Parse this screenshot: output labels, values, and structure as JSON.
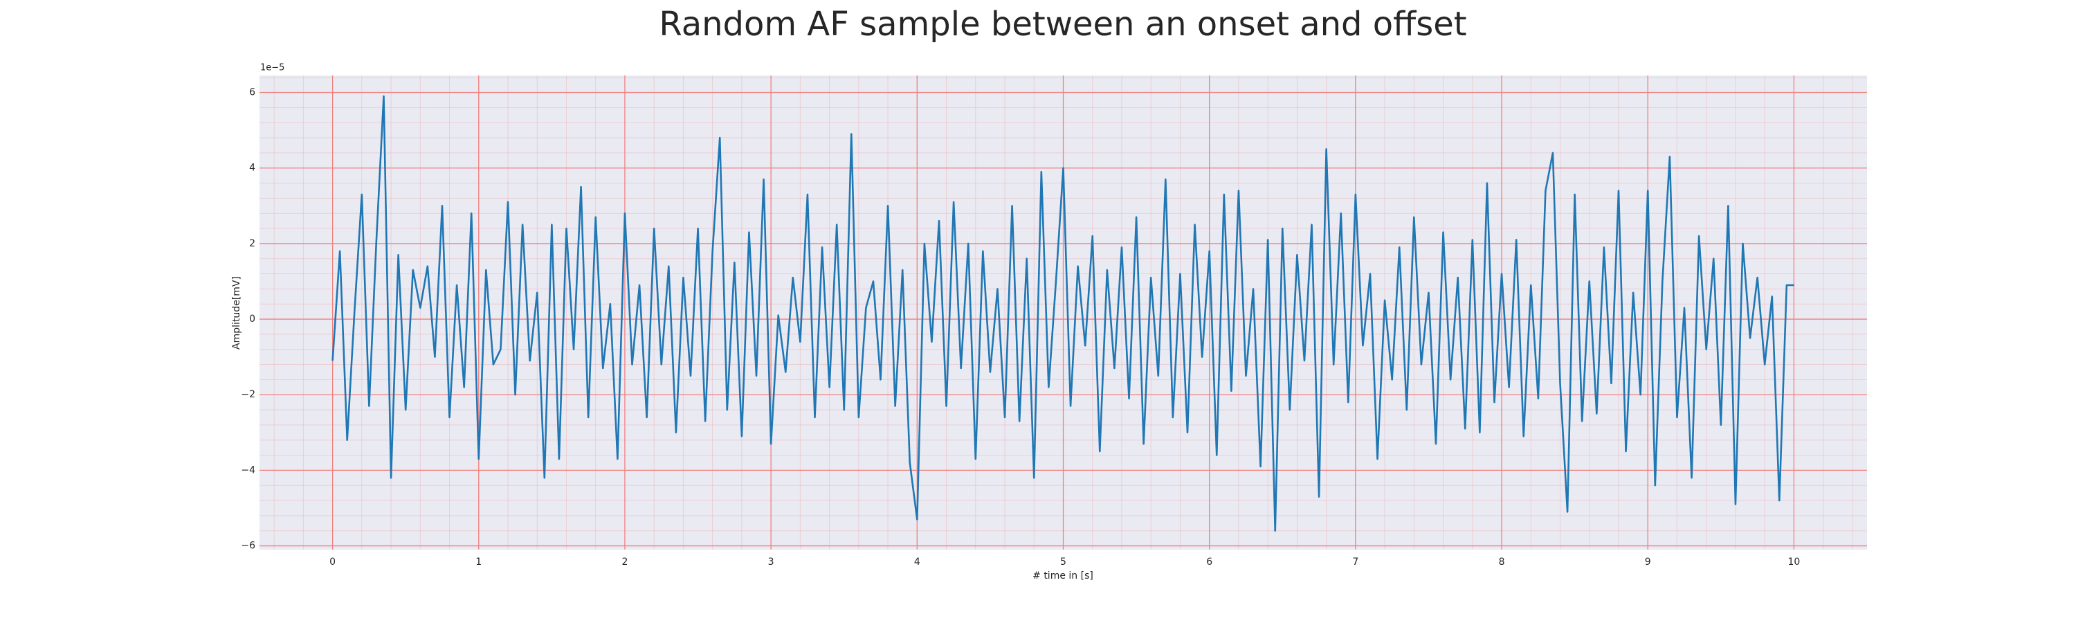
{
  "chart_data": {
    "type": "line",
    "title": "Random AF sample between an onset and offset",
    "x_label": "# time in [s]",
    "y_label": "Amplitude[mV]",
    "y_offset_text": "1e−5",
    "xlim": [
      -0.5,
      10.5
    ],
    "ylim": [
      -6.1,
      6.45
    ],
    "xticks": [
      0,
      1,
      2,
      3,
      4,
      5,
      6,
      7,
      8,
      9,
      10
    ],
    "yticks": [
      {
        "value": -6,
        "label": "−6"
      },
      {
        "value": -4,
        "label": "−4"
      },
      {
        "value": -2,
        "label": "−2"
      },
      0,
      2,
      4,
      6
    ],
    "grid": true,
    "grid_color": "#f08080",
    "minor_grid": true,
    "background": "#eaeaf2",
    "x": [
      0,
      0.05,
      0.1,
      0.15,
      0.2,
      0.25,
      0.3,
      0.35,
      0.4,
      0.45,
      0.5,
      0.55,
      0.6,
      0.65,
      0.7,
      0.75,
      0.8,
      0.85,
      0.9,
      0.95,
      1,
      1.05,
      1.1,
      1.15,
      1.2,
      1.25,
      1.3,
      1.35,
      1.4,
      1.45,
      1.5,
      1.55,
      1.6,
      1.65,
      1.7,
      1.75,
      1.8,
      1.85,
      1.9,
      1.95,
      2,
      2.05,
      2.1,
      2.15,
      2.2,
      2.25,
      2.3,
      2.35,
      2.4,
      2.45,
      2.5,
      2.55,
      2.6,
      2.65,
      2.7,
      2.75,
      2.8,
      2.85,
      2.9,
      2.95,
      3,
      3.05,
      3.1,
      3.15,
      3.2,
      3.25,
      3.3,
      3.35,
      3.4,
      3.45,
      3.5,
      3.55,
      3.6,
      3.65,
      3.7,
      3.75,
      3.8,
      3.85,
      3.9,
      3.95,
      4,
      4.05,
      4.1,
      4.15,
      4.2,
      4.25,
      4.3,
      4.35,
      4.4,
      4.45,
      4.5,
      4.55,
      4.6,
      4.65,
      4.7,
      4.75,
      4.8,
      4.85,
      4.9,
      4.95,
      5,
      5.05,
      5.1,
      5.15,
      5.2,
      5.25,
      5.3,
      5.35,
      5.4,
      5.45,
      5.5,
      5.55,
      5.6,
      5.65,
      5.7,
      5.75,
      5.8,
      5.85,
      5.9,
      5.95,
      6,
      6.05,
      6.1,
      6.15,
      6.2,
      6.25,
      6.3,
      6.35,
      6.4,
      6.45,
      6.5,
      6.55,
      6.6,
      6.65,
      6.7,
      6.75,
      6.8,
      6.85,
      6.9,
      6.95,
      7,
      7.05,
      7.1,
      7.15,
      7.2,
      7.25,
      7.3,
      7.35,
      7.4,
      7.45,
      7.5,
      7.55,
      7.6,
      7.65,
      7.7,
      7.75,
      7.8,
      7.85,
      7.9,
      7.95,
      8,
      8.05,
      8.1,
      8.15,
      8.2,
      8.25,
      8.3,
      8.35,
      8.4,
      8.45,
      8.5,
      8.55,
      8.6,
      8.65,
      8.7,
      8.75,
      8.8,
      8.85,
      8.9,
      8.95,
      9,
      9.05,
      9.1,
      9.15,
      9.2,
      9.25,
      9.3,
      9.35,
      9.4,
      9.45,
      9.5,
      9.55,
      9.6,
      9.65,
      9.7,
      9.75,
      9.8,
      9.85,
      9.9,
      9.95,
      10
    ],
    "series": [
      {
        "color": "#1f77b4",
        "values": [
          -1.1,
          1.8,
          -3.2,
          0.2,
          3.3,
          -2.3,
          2.1,
          5.9,
          -4.2,
          1.7,
          -2.4,
          1.3,
          0.3,
          1.4,
          -1.0,
          3.0,
          -2.6,
          0.9,
          -1.8,
          2.8,
          -3.7,
          1.3,
          -1.2,
          -0.8,
          3.1,
          -2.0,
          2.5,
          -1.1,
          0.7,
          -4.2,
          2.5,
          -3.7,
          2.4,
          -0.8,
          3.5,
          -2.6,
          2.7,
          -1.3,
          0.4,
          -3.7,
          2.8,
          -1.2,
          0.9,
          -2.6,
          2.4,
          -1.2,
          1.4,
          -3.0,
          1.1,
          -1.5,
          2.4,
          -2.7,
          1.8,
          4.8,
          -2.4,
          1.5,
          -3.1,
          2.3,
          -1.5,
          3.7,
          -3.3,
          0.1,
          -1.4,
          1.1,
          -0.6,
          3.3,
          -2.6,
          1.9,
          -1.8,
          2.5,
          -2.4,
          4.9,
          -2.6,
          0.3,
          1.0,
          -1.6,
          3.0,
          -2.3,
          1.3,
          -3.8,
          -5.3,
          2.0,
          -0.6,
          2.6,
          -2.3,
          3.1,
          -1.3,
          2.0,
          -3.7,
          1.8,
          -1.4,
          0.8,
          -2.6,
          3.0,
          -2.7,
          1.6,
          -4.2,
          3.9,
          -1.8,
          1.0,
          4.0,
          -2.3,
          1.4,
          -0.7,
          2.2,
          -3.5,
          1.3,
          -1.3,
          1.9,
          -2.1,
          2.7,
          -3.3,
          1.1,
          -1.5,
          3.7,
          -2.6,
          1.2,
          -3.0,
          2.5,
          -1.0,
          1.8,
          -3.6,
          3.3,
          -1.9,
          3.4,
          -1.5,
          0.8,
          -3.9,
          2.1,
          -5.6,
          2.4,
          -2.4,
          1.7,
          -1.1,
          2.5,
          -4.7,
          4.5,
          -1.2,
          2.8,
          -2.2,
          3.3,
          -0.7,
          1.2,
          -3.7,
          0.5,
          -1.6,
          1.9,
          -2.4,
          2.7,
          -1.2,
          0.7,
          -3.3,
          2.3,
          -1.6,
          1.1,
          -2.9,
          2.1,
          -3.0,
          3.6,
          -2.2,
          1.2,
          -1.8,
          2.1,
          -3.1,
          0.9,
          -2.1,
          3.4,
          4.4,
          -1.7,
          -5.1,
          3.3,
          -2.7,
          1.0,
          -2.5,
          1.9,
          -1.7,
          3.4,
          -3.5,
          0.7,
          -2.0,
          3.4,
          -4.4,
          1.0,
          4.3,
          -2.6,
          0.3,
          -4.2,
          2.2,
          -0.8,
          1.6,
          -2.8,
          3.0,
          -4.9,
          2.0,
          -0.5,
          1.1,
          -1.2,
          0.6,
          -4.8,
          0.9,
          0.9
        ]
      }
    ]
  }
}
